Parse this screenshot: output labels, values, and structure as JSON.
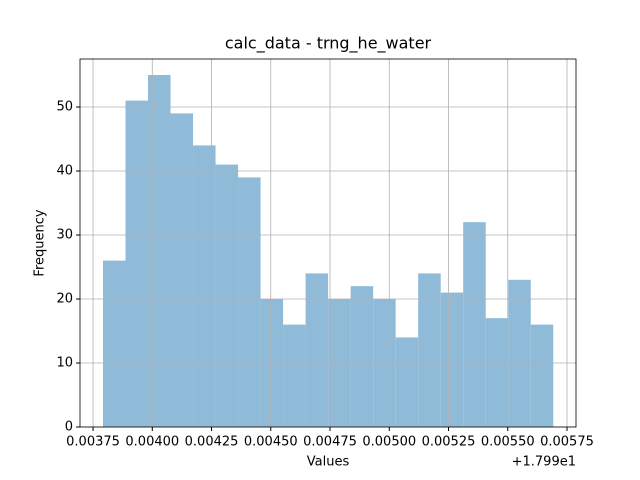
{
  "chart_data": {
    "type": "histogram",
    "title": "calc_data - trng_he_water",
    "x_label": "Values",
    "y_label": "Frequency",
    "x_offset_label": "+1.799e1",
    "bins": [
      0.003792,
      0.003887,
      0.003982,
      0.004077,
      0.004172,
      0.004267,
      0.004362,
      0.004457,
      0.004552,
      0.004647,
      0.004742,
      0.004837,
      0.004932,
      0.005027,
      0.005122,
      0.005217,
      0.005312,
      0.005407,
      0.005502,
      0.005597,
      0.005692
    ],
    "values": [
      26,
      51,
      55,
      49,
      44,
      41,
      39,
      20,
      16,
      24,
      20,
      22,
      20,
      14,
      24,
      21,
      32,
      17,
      23,
      16
    ],
    "color": "#8fbbd9",
    "xlim": [
      0.003695,
      0.005788
    ],
    "xticks": [
      0.00375,
      {
        "value": 0.004,
        "label": "0.00400"
      },
      0.00425,
      {
        "value": 0.0045,
        "label": "0.00450"
      },
      0.00475,
      {
        "value": 0.005,
        "label": "0.00500"
      },
      0.00525,
      {
        "value": 0.0055,
        "label": "0.00550"
      },
      0.00575
    ],
    "ylim": [
      0,
      57.5
    ],
    "yticks": [
      0,
      10,
      20,
      30,
      40,
      50
    ],
    "grid": true
  }
}
